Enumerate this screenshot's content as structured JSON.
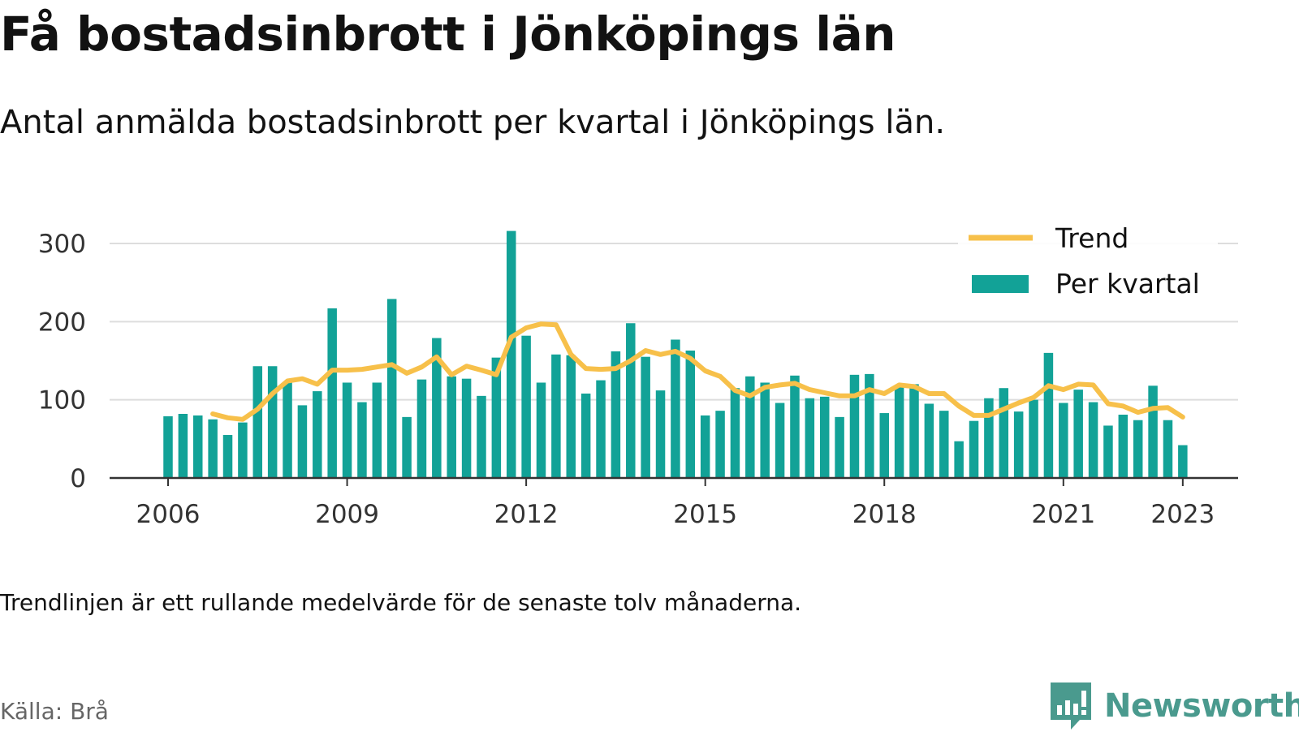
{
  "title": "Få bostadsinbrott i Jönköpings län",
  "subtitle": "Antal anmälda bostadsinbrott per kvartal i Jönköpings län.",
  "footnote": "Trendlinjen är ett rullande medelvärde för de senaste tolv månaderna.",
  "source": "Källa: Brå",
  "brand": "Newsworthy",
  "colors": {
    "bars": "#12a297",
    "trend": "#f7c04a",
    "grid": "#dddddd",
    "axis": "#333333",
    "brand": "#4a9a8e"
  },
  "chart_data": {
    "type": "bar",
    "x_unit": "quarter",
    "ylim": [
      0,
      330
    ],
    "yticks": [
      0,
      100,
      200,
      300
    ],
    "xticks": [
      "2006",
      "2009",
      "2012",
      "2015",
      "2018",
      "2021",
      "2023"
    ],
    "grid": true,
    "legend_position": "top-right",
    "categories": [
      "2006Q1",
      "2006Q2",
      "2006Q3",
      "2006Q4",
      "2007Q1",
      "2007Q2",
      "2007Q3",
      "2007Q4",
      "2008Q1",
      "2008Q2",
      "2008Q3",
      "2008Q4",
      "2009Q1",
      "2009Q2",
      "2009Q3",
      "2009Q4",
      "2010Q1",
      "2010Q2",
      "2010Q3",
      "2010Q4",
      "2011Q1",
      "2011Q2",
      "2011Q3",
      "2011Q4",
      "2012Q1",
      "2012Q2",
      "2012Q3",
      "2012Q4",
      "2013Q1",
      "2013Q2",
      "2013Q3",
      "2013Q4",
      "2014Q1",
      "2014Q2",
      "2014Q3",
      "2014Q4",
      "2015Q1",
      "2015Q2",
      "2015Q3",
      "2015Q4",
      "2016Q1",
      "2016Q2",
      "2016Q3",
      "2016Q4",
      "2017Q1",
      "2017Q2",
      "2017Q3",
      "2017Q4",
      "2018Q1",
      "2018Q2",
      "2018Q3",
      "2018Q4",
      "2019Q1",
      "2019Q2",
      "2019Q3",
      "2019Q4",
      "2020Q1",
      "2020Q2",
      "2020Q3",
      "2020Q4",
      "2021Q1",
      "2021Q2",
      "2021Q3",
      "2021Q4",
      "2022Q1",
      "2022Q2",
      "2022Q3",
      "2022Q4",
      "2023Q1"
    ],
    "series": [
      {
        "name": "Per kvartal",
        "kind": "bar",
        "values": [
          79,
          82,
          80,
          75,
          55,
          71,
          143,
          143,
          122,
          93,
          111,
          217,
          122,
          97,
          122,
          229,
          78,
          126,
          179,
          130,
          127,
          105,
          154,
          316,
          182,
          122,
          158,
          157,
          108,
          125,
          162,
          198,
          155,
          112,
          177,
          163,
          80,
          86,
          115,
          130,
          122,
          96,
          131,
          102,
          104,
          78,
          132,
          133,
          83,
          118,
          120,
          95,
          86,
          47,
          73,
          102,
          115,
          85,
          100,
          160,
          96,
          113,
          97,
          67,
          81,
          74,
          118,
          74,
          42
        ]
      },
      {
        "name": "Trend",
        "kind": "line",
        "values": [
          null,
          null,
          null,
          82,
          77,
          75,
          88,
          108,
          124,
          127,
          120,
          138,
          138,
          139,
          142,
          145,
          134,
          142,
          155,
          132,
          143,
          138,
          132,
          180,
          192,
          197,
          196,
          158,
          140,
          139,
          140,
          150,
          163,
          158,
          162,
          153,
          137,
          130,
          112,
          105,
          116,
          119,
          121,
          113,
          109,
          105,
          105,
          113,
          108,
          119,
          117,
          108,
          108,
          92,
          80,
          80,
          88,
          96,
          103,
          118,
          113,
          120,
          119,
          95,
          92,
          84,
          89,
          90,
          78
        ]
      }
    ]
  }
}
